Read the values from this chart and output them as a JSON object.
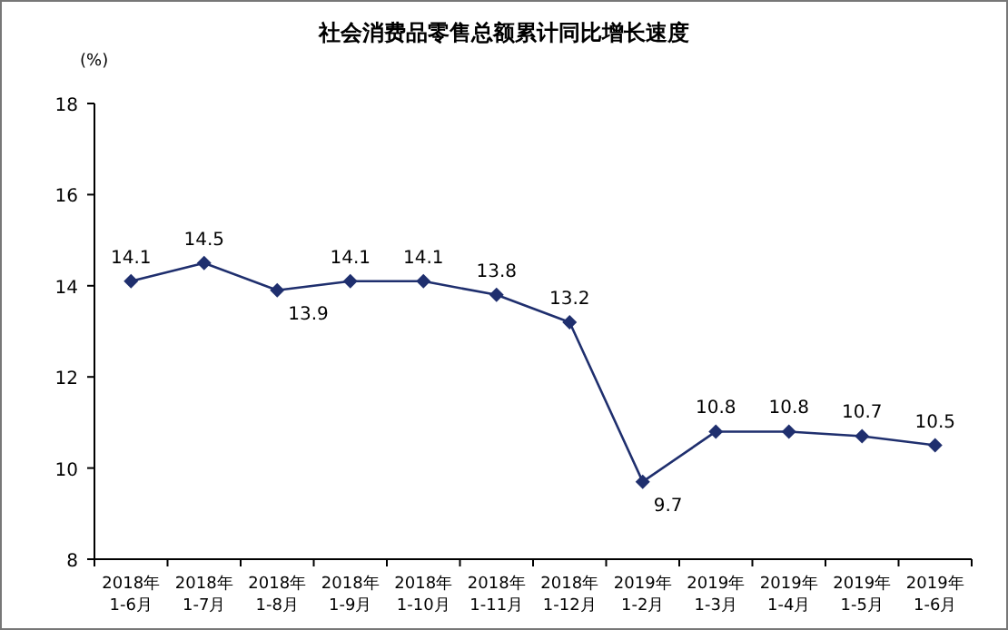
{
  "chart_data": {
    "type": "line",
    "title": "社会消费品零售总额累计同比增长速度",
    "ylabel": "(%)",
    "categories": [
      "2018年\n1-6月",
      "2018年\n1-7月",
      "2018年\n1-8月",
      "2018年\n1-9月",
      "2018年\n1-10月",
      "2018年\n1-11月",
      "2018年\n1-12月",
      "2019年\n1-2月",
      "2019年\n1-3月",
      "2019年\n1-4月",
      "2019年\n1-5月",
      "2019年\n1-6月"
    ],
    "values": [
      14.1,
      14.5,
      13.9,
      14.1,
      14.1,
      13.8,
      13.2,
      9.7,
      10.8,
      10.8,
      10.7,
      10.5
    ],
    "color": "#1f2f6e",
    "marker": "diamond",
    "data_labels": true,
    "ylim": [
      8,
      18
    ],
    "yticks": [
      8,
      10,
      12,
      14,
      16,
      18
    ]
  }
}
